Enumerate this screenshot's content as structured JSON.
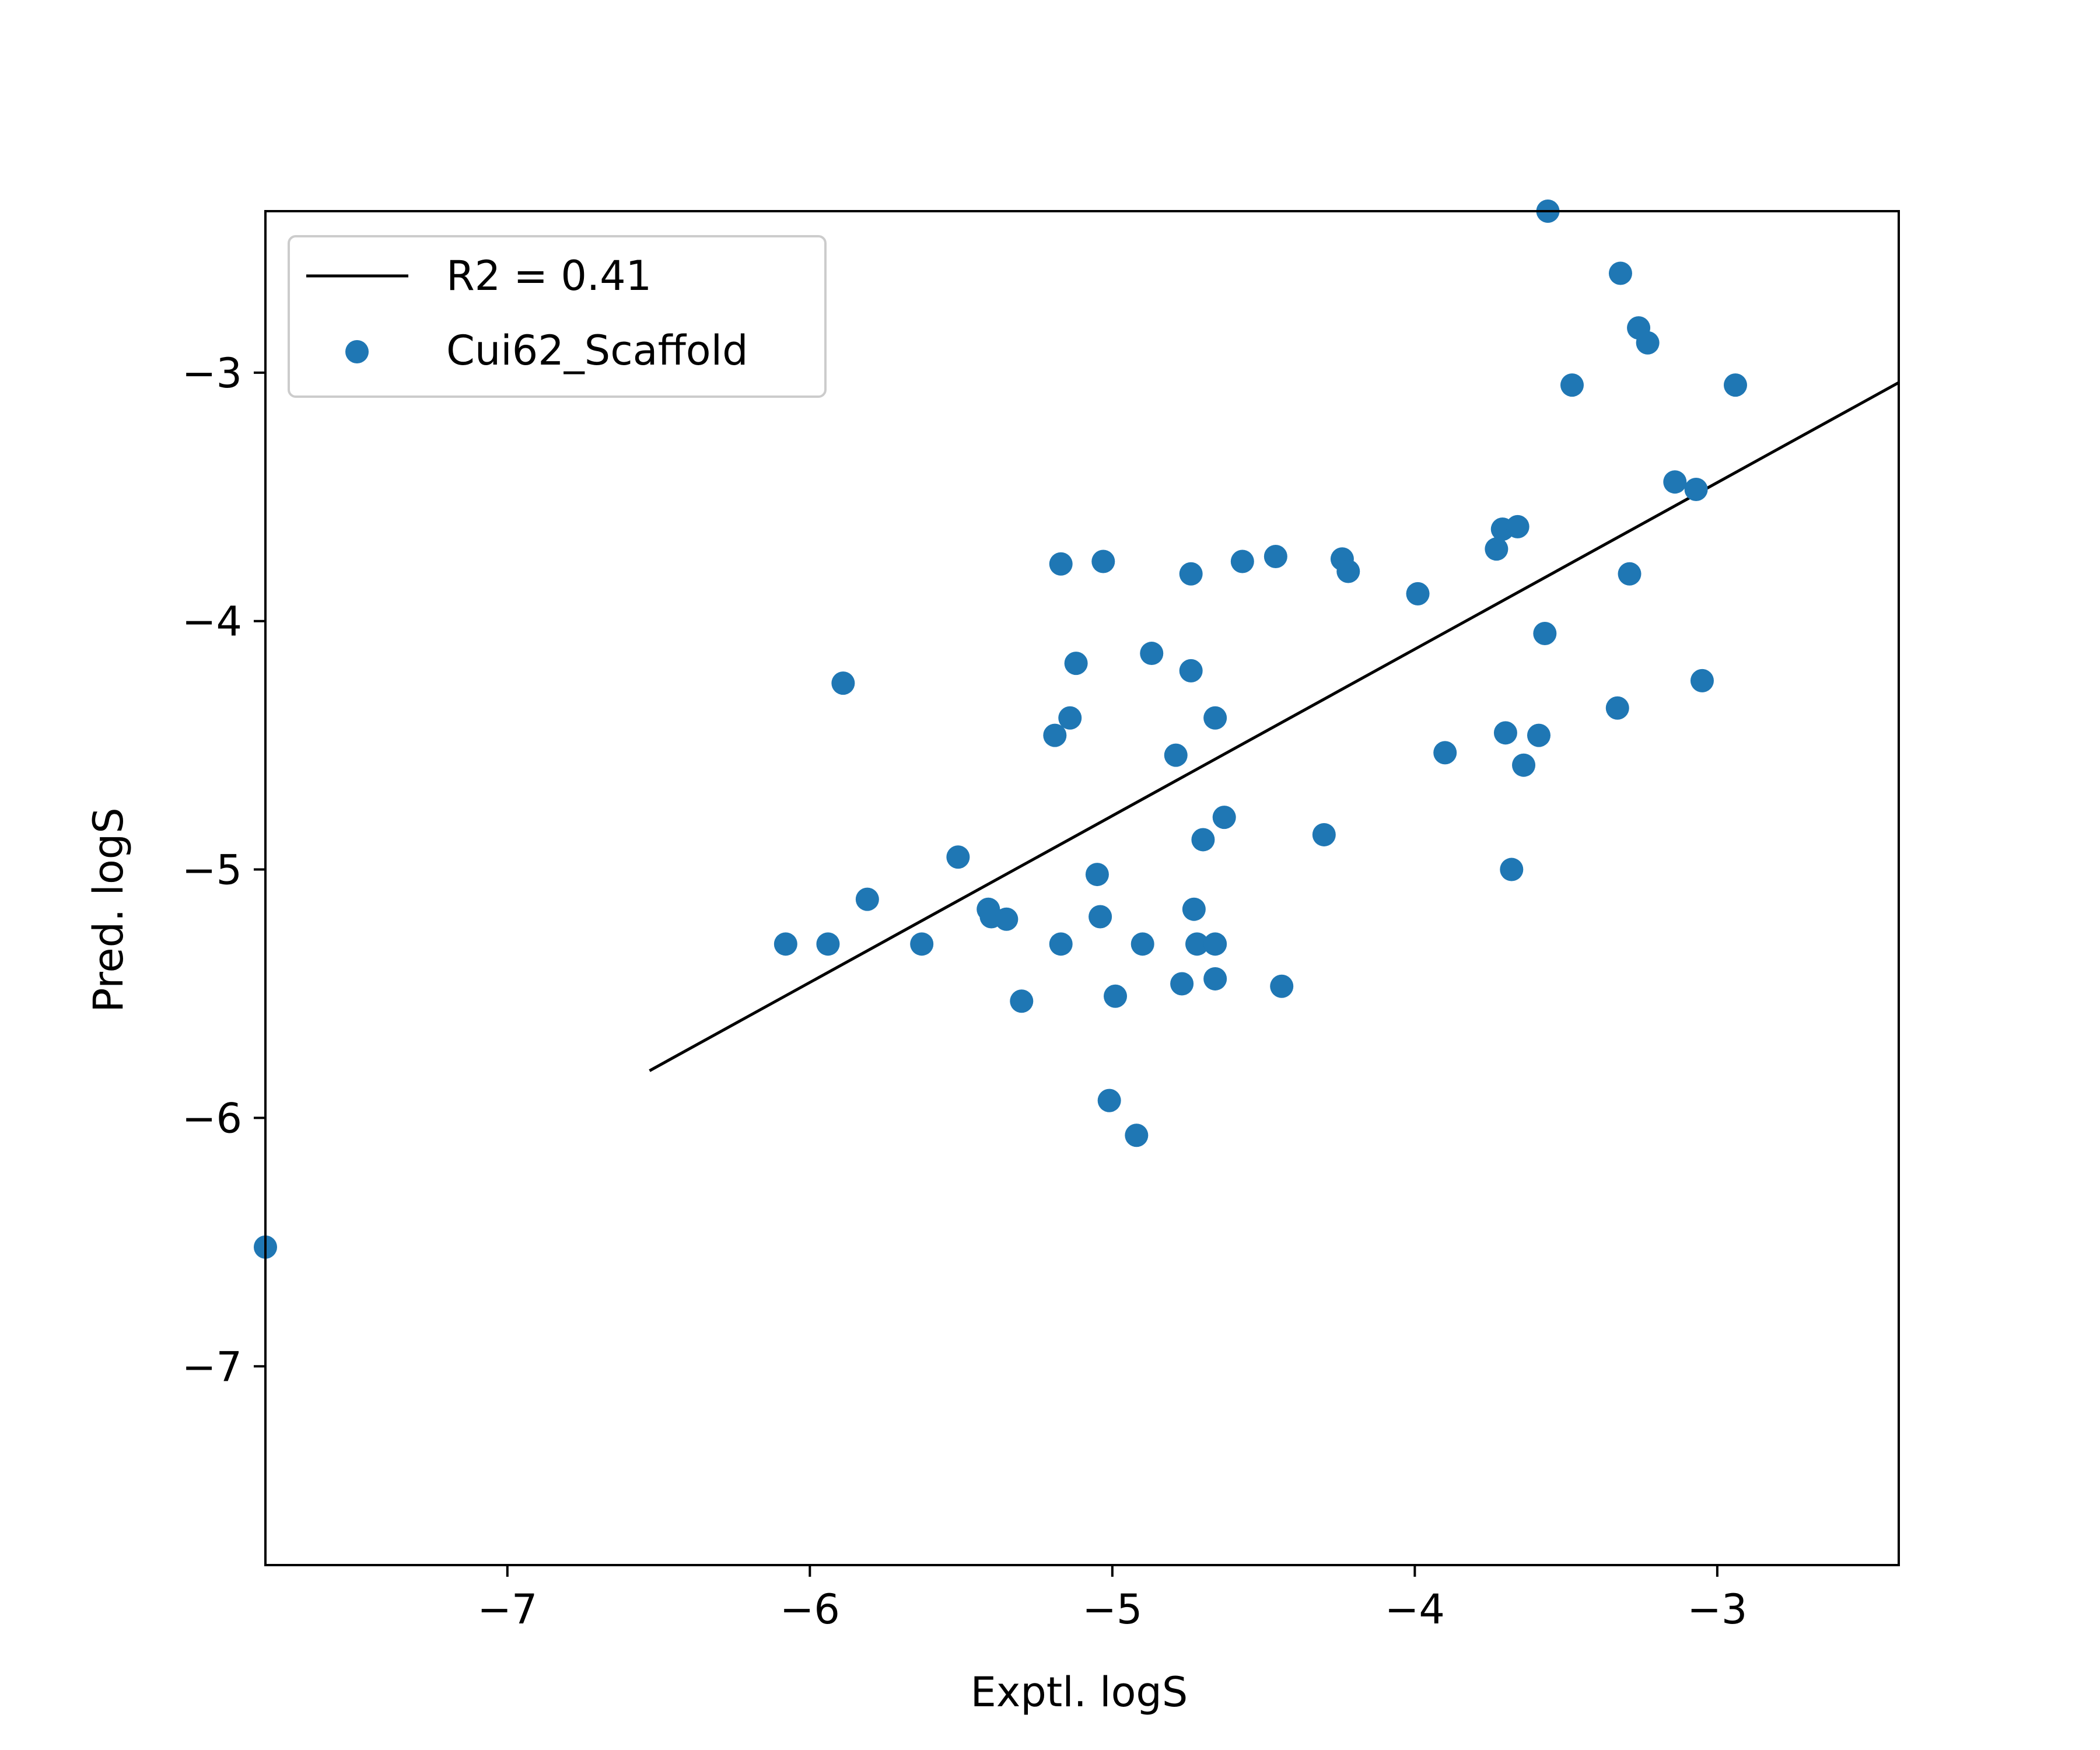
{
  "chart_data": {
    "type": "scatter",
    "title": "",
    "xlabel": "Exptl. logS",
    "ylabel": "Pred. logS",
    "xlim": [
      -7.8,
      -2.4
    ],
    "ylim": [
      -7.8,
      -2.35
    ],
    "xticks": [
      -7,
      -6,
      -5,
      -4,
      -3
    ],
    "yticks": [
      -7,
      -6,
      -5,
      -4,
      -3
    ],
    "grid": false,
    "legend_position": "top-left",
    "colors": {
      "scatter": "#1f77b4",
      "fit_line": "#000000",
      "axes": "#000000"
    },
    "fit_line": {
      "name": "R2 = 0.41",
      "x": [
        -6.53,
        -2.4
      ],
      "y": [
        -5.81,
        -3.04
      ]
    },
    "series": [
      {
        "name": "Cui62_Scaffold",
        "x": [
          -3.56,
          -3.32,
          -3.26,
          -3.23,
          -3.48,
          -2.94,
          -3.14,
          -3.07,
          -3.71,
          -3.66,
          -3.73,
          -3.29,
          -3.99,
          -3.57,
          -3.05,
          -3.33,
          -3.9,
          -3.7,
          -3.59,
          -3.64,
          -3.68,
          -4.24,
          -4.22,
          -4.46,
          -4.57,
          -4.74,
          -5.03,
          -5.17,
          -4.87,
          -4.74,
          -5.12,
          -4.66,
          -5.14,
          -5.19,
          -4.79,
          -4.63,
          -4.7,
          -4.3,
          -5.05,
          -5.51,
          -5.81,
          -5.89,
          -5.41,
          -5.4,
          -5.35,
          -6.08,
          -5.94,
          -5.63,
          -5.17,
          -5.04,
          -4.9,
          -4.73,
          -4.72,
          -4.66,
          -4.77,
          -4.66,
          -4.44,
          -5.3,
          -4.99,
          -5.01,
          -4.92,
          -7.8
        ],
        "y": [
          -2.35,
          -2.6,
          -2.82,
          -2.88,
          -3.05,
          -3.05,
          -3.44,
          -3.47,
          -3.63,
          -3.62,
          -3.71,
          -3.81,
          -3.89,
          -4.05,
          -4.24,
          -4.35,
          -4.53,
          -4.45,
          -4.46,
          -4.58,
          -5.0,
          -3.75,
          -3.8,
          -3.74,
          -3.76,
          -3.81,
          -3.76,
          -3.77,
          -4.13,
          -4.2,
          -4.17,
          -4.39,
          -4.39,
          -4.46,
          -4.54,
          -4.79,
          -4.88,
          -4.86,
          -5.02,
          -4.95,
          -5.12,
          -4.25,
          -5.16,
          -5.19,
          -5.2,
          -5.3,
          -5.3,
          -5.3,
          -5.3,
          -5.19,
          -5.3,
          -5.16,
          -5.3,
          -5.3,
          -5.46,
          -5.44,
          -5.47,
          -5.53,
          -5.51,
          -5.93,
          -6.07,
          -6.52
        ]
      }
    ]
  }
}
